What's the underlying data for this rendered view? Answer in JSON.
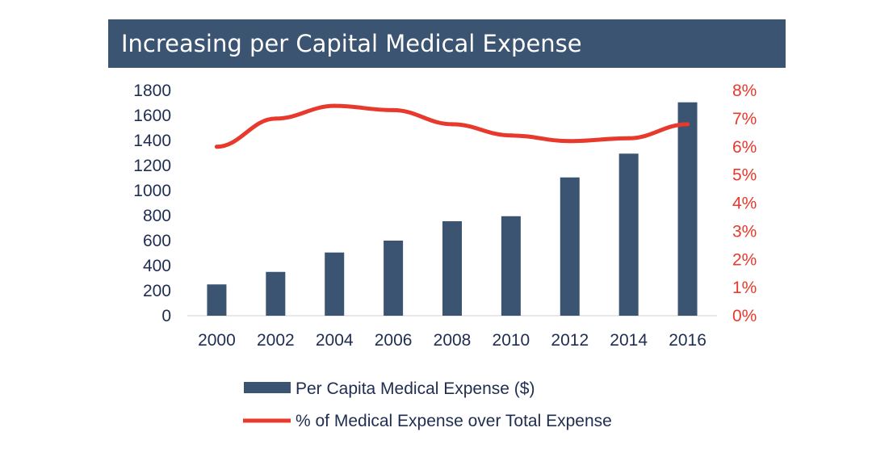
{
  "colors": {
    "title_bg": "#3b5471",
    "bar": "#3b5471",
    "line": "#e8392d",
    "text": "#1f2d50"
  },
  "chart_data": {
    "type": "bar",
    "title": "Increasing per Capital Medical Expense",
    "categories": [
      "2000",
      "2002",
      "2004",
      "2006",
      "2008",
      "2010",
      "2012",
      "2014",
      "2016"
    ],
    "series": [
      {
        "name": "Per Capita Medical Expense ($)",
        "type": "bar",
        "axis": "left",
        "values": [
          250,
          350,
          505,
          600,
          755,
          795,
          1105,
          1295,
          1705
        ]
      },
      {
        "name": "% of Medical Expense over Total Expense",
        "type": "line",
        "axis": "right",
        "values": [
          6.0,
          7.0,
          7.45,
          7.3,
          6.8,
          6.4,
          6.2,
          6.3,
          6.8
        ]
      }
    ],
    "y_left": {
      "ticks": [
        "0",
        "200",
        "400",
        "600",
        "800",
        "1000",
        "1200",
        "1400",
        "1600",
        "1800"
      ],
      "ylim": [
        0,
        1800
      ]
    },
    "y_right": {
      "ticks": [
        "0%",
        "1%",
        "2%",
        "3%",
        "4%",
        "5%",
        "6%",
        "7%",
        "8%"
      ],
      "ylim": [
        0,
        8
      ]
    },
    "legend_position": "bottom",
    "grid": false
  }
}
